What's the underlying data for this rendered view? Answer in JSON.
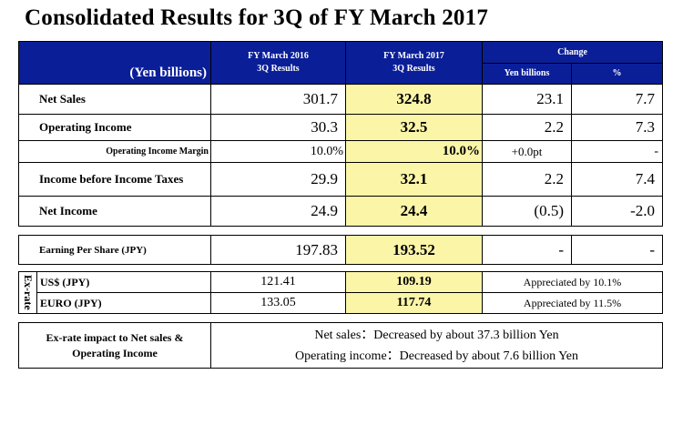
{
  "title": "Consolidated Results for 3Q of FY March 2017",
  "header": {
    "unit_label": "(Yen billions)",
    "col_2016": [
      "FY March 2016",
      "3Q Results"
    ],
    "col_2017": [
      "FY March 2017",
      "3Q Results"
    ],
    "change": "Change",
    "change_yen": "Yen billions",
    "change_pct": "%"
  },
  "rows": [
    {
      "label": "Net Sales",
      "v2016": "301.7",
      "v2017": "324.8",
      "chg": "23.1",
      "pct": "7.7"
    },
    {
      "label": "Operating Income",
      "v2016": "30.3",
      "v2017": "32.5",
      "chg": "2.2",
      "pct": "7.3"
    },
    {
      "label": "Operating Income Margin",
      "v2016": "10.0%",
      "v2017": "10.0%",
      "chg": "+0.0pt",
      "pct": "-"
    },
    {
      "label": "Income before Income Taxes",
      "v2016": "29.9",
      "v2017": "32.1",
      "chg": "2.2",
      "pct": "7.4"
    },
    {
      "label": "Net Income",
      "v2016": "24.9",
      "v2017": "24.4",
      "chg": "(0.5)",
      "pct": "-2.0"
    }
  ],
  "eps": {
    "label": "Earning Per Share (JPY)",
    "v2016": "197.83",
    "v2017": "193.52",
    "chg": "-",
    "pct": "-"
  },
  "exrate": {
    "side_label": "Ex-rate",
    "rows": [
      {
        "label": "US$ (JPY)",
        "v2016": "121.41",
        "v2017": "109.19",
        "note": "Appreciated by 10.1%"
      },
      {
        "label": "EURO (JPY)",
        "v2016": "133.05",
        "v2017": "117.74",
        "note": "Appreciated by 11.5%"
      }
    ]
  },
  "impact": {
    "label_line1": "Ex-rate impact to Net sales &",
    "label_line2": "Operating Income",
    "line1": "Net sales：Decreased by about 37.3 billion Yen",
    "line2": "Operating income：Decreased by about 7.6 billion Yen"
  }
}
